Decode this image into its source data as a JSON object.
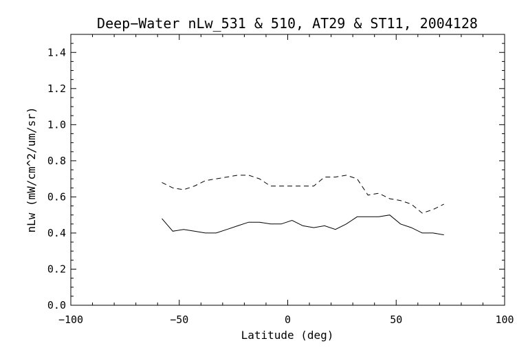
{
  "chart_data": {
    "type": "line",
    "title": "Deep−Water nLw_531 & 510, AT29 & ST11, 2004128",
    "xlabel": "Latitude (deg)",
    "ylabel": "nLw (mW/cm^2/um/sr)",
    "xlim": [
      -100,
      100
    ],
    "ylim": [
      0.0,
      1.5
    ],
    "x_ticks": [
      "−100",
      "−50",
      "0",
      "50",
      "100"
    ],
    "y_ticks": [
      "0.0",
      "0.2",
      "0.4",
      "0.6",
      "0.8",
      "1.0",
      "1.2",
      "1.4"
    ],
    "grid": false,
    "series": [
      {
        "line_style": "dashed",
        "color": "#000000",
        "x": [
          -58,
          -53,
          -48,
          -43,
          -38,
          -33,
          -28,
          -23,
          -18,
          -13,
          -8,
          -3,
          2,
          7,
          12,
          17,
          22,
          27,
          32,
          37,
          42,
          47,
          52,
          57,
          62,
          67,
          72
        ],
        "y": [
          0.68,
          0.65,
          0.64,
          0.66,
          0.69,
          0.7,
          0.71,
          0.72,
          0.72,
          0.7,
          0.66,
          0.66,
          0.66,
          0.66,
          0.66,
          0.71,
          0.71,
          0.72,
          0.7,
          0.61,
          0.62,
          0.59,
          0.58,
          0.56,
          0.51,
          0.53,
          0.56
        ]
      },
      {
        "line_style": "solid",
        "color": "#000000",
        "x": [
          -58,
          -53,
          -48,
          -43,
          -38,
          -33,
          -28,
          -23,
          -18,
          -13,
          -8,
          -3,
          2,
          7,
          12,
          17,
          22,
          27,
          32,
          37,
          42,
          47,
          52,
          57,
          62,
          67,
          72
        ],
        "y": [
          0.48,
          0.41,
          0.42,
          0.41,
          0.4,
          0.4,
          0.42,
          0.44,
          0.46,
          0.46,
          0.45,
          0.45,
          0.47,
          0.44,
          0.43,
          0.44,
          0.42,
          0.45,
          0.49,
          0.49,
          0.49,
          0.5,
          0.45,
          0.43,
          0.4,
          0.4,
          0.39
        ]
      }
    ]
  }
}
